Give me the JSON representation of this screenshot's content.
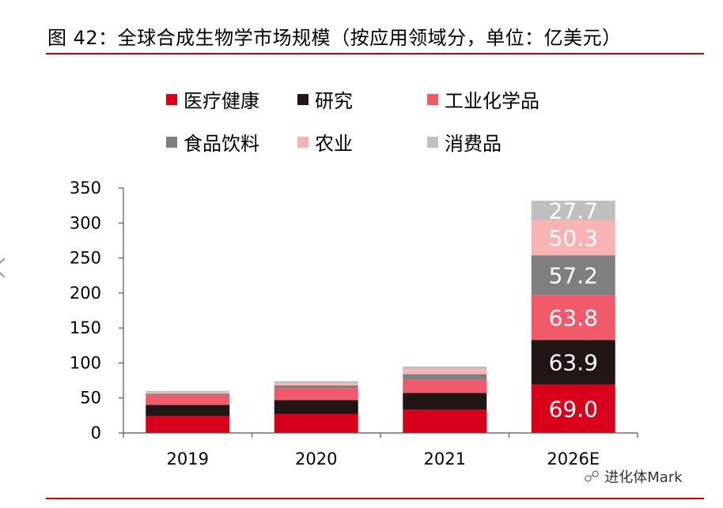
{
  "title": "图 42：全球合成生物学市场规模（按应用领域分，单位：亿美元）",
  "watermark": "进化体Mark",
  "chart_data": {
    "type": "bar",
    "stacked": true,
    "title": "图 42：全球合成生物学市场规模（按应用领域分，单位：亿美元）",
    "xlabel": "",
    "ylabel": "",
    "categories": [
      "2019",
      "2020",
      "2021",
      "2026E"
    ],
    "ylim": [
      0,
      350
    ],
    "yticks": [
      0,
      50,
      100,
      150,
      200,
      250,
      300,
      350
    ],
    "grid": false,
    "legend_position": "top",
    "series": [
      {
        "name": "医疗健康",
        "color": "#d9001b",
        "values": [
          24,
          27,
          33,
          69.0
        ],
        "labels": [
          "",
          "",
          "",
          "69.0"
        ]
      },
      {
        "name": "研究",
        "color": "#221614",
        "values": [
          16,
          20,
          24,
          63.9
        ],
        "labels": [
          "",
          "",
          "",
          "63.9"
        ]
      },
      {
        "name": "工业化学品",
        "color": "#f05a6a",
        "values": [
          14,
          17,
          19,
          63.8
        ],
        "labels": [
          "",
          "",
          "",
          "63.8"
        ]
      },
      {
        "name": "食品饮料",
        "color": "#7f7f7f",
        "values": [
          2,
          4,
          8,
          57.2
        ],
        "labels": [
          "",
          "",
          "",
          "57.2"
        ]
      },
      {
        "name": "农业",
        "color": "#f9b3b5",
        "values": [
          2,
          3,
          7,
          50.3
        ],
        "labels": [
          "",
          "",
          "",
          "50.3"
        ]
      },
      {
        "name": "消费品",
        "color": "#bfbfbf",
        "values": [
          2,
          3,
          4,
          27.7
        ],
        "labels": [
          "",
          "",
          "",
          "27.7"
        ]
      }
    ]
  }
}
